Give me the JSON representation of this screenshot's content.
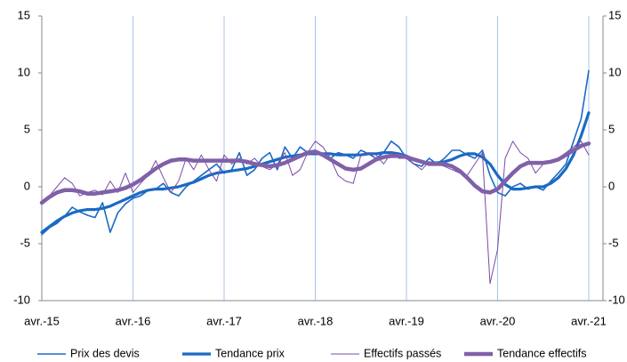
{
  "chart_data": {
    "type": "line",
    "categories": [
      "avr.-15",
      null,
      null,
      null,
      null,
      null,
      null,
      null,
      null,
      null,
      null,
      null,
      "avr.-16",
      null,
      null,
      null,
      null,
      null,
      null,
      null,
      null,
      null,
      null,
      null,
      "avr.-17",
      null,
      null,
      null,
      null,
      null,
      null,
      null,
      null,
      null,
      null,
      null,
      "avr.-18",
      null,
      null,
      null,
      null,
      null,
      null,
      null,
      null,
      null,
      null,
      null,
      "avr.-19",
      null,
      null,
      null,
      null,
      null,
      null,
      null,
      null,
      null,
      null,
      null,
      "avr.-20",
      null,
      null,
      null,
      null,
      null,
      null,
      null,
      null,
      null,
      null,
      null,
      "avr.-21"
    ],
    "ylim": [
      -10,
      15
    ],
    "yticks": [
      -10,
      -5,
      0,
      5,
      10,
      15
    ],
    "y2lim": [
      -10,
      15
    ],
    "y2ticks": [
      -10,
      -5,
      0,
      5,
      10,
      15
    ],
    "grid": "vertical",
    "series": [
      {
        "name": "Prix des devis",
        "color": "#1a6ac4",
        "line_width": 1.6,
        "values": [
          -4.2,
          -3.6,
          -3.2,
          -2.6,
          -1.8,
          -2.2,
          -2.5,
          -2.7,
          -1.4,
          -4.0,
          -2.3,
          -1.5,
          -1.0,
          -0.8,
          -0.3,
          -0.2,
          0.3,
          -0.5,
          -0.8,
          0.0,
          0.5,
          1.0,
          1.5,
          2.0,
          1.2,
          1.5,
          3.0,
          1.0,
          1.5,
          2.5,
          3.0,
          1.5,
          3.5,
          2.5,
          3.5,
          3.0,
          3.2,
          2.8,
          2.5,
          3.0,
          2.8,
          2.5,
          3.2,
          2.9,
          2.5,
          3.0,
          4.0,
          3.5,
          2.5,
          2.0,
          1.8,
          2.5,
          2.0,
          2.5,
          3.2,
          3.2,
          2.8,
          2.5,
          3.2,
          1.0,
          -0.5,
          -0.8,
          0.0,
          0.3,
          -0.2,
          0.0,
          -0.3,
          0.5,
          1.2,
          2.0,
          4.0,
          6.0,
          10.2
        ]
      },
      {
        "name": "Tendance prix",
        "color": "#1a6ac4",
        "line_width": 3.2,
        "values": [
          -4.0,
          -3.5,
          -3.0,
          -2.6,
          -2.3,
          -2.1,
          -2.0,
          -2.0,
          -1.9,
          -1.7,
          -1.4,
          -1.1,
          -0.8,
          -0.5,
          -0.3,
          -0.2,
          -0.2,
          -0.1,
          0.0,
          0.2,
          0.4,
          0.7,
          1.0,
          1.2,
          1.3,
          1.4,
          1.5,
          1.6,
          1.8,
          2.0,
          2.2,
          2.4,
          2.6,
          2.7,
          2.8,
          2.9,
          2.9,
          2.9,
          2.9,
          2.8,
          2.8,
          2.8,
          2.8,
          2.9,
          2.9,
          3.0,
          3.0,
          2.9,
          2.7,
          2.4,
          2.2,
          2.1,
          2.1,
          2.2,
          2.4,
          2.7,
          2.9,
          2.9,
          2.6,
          2.0,
          1.0,
          0.2,
          -0.2,
          -0.2,
          -0.1,
          0.0,
          0.0,
          0.3,
          0.8,
          1.6,
          2.8,
          4.5,
          6.5
        ]
      },
      {
        "name": "Effectifs passés",
        "color": "#7a4aa8",
        "line_width": 1,
        "values": [
          -1.5,
          -0.8,
          0.0,
          0.8,
          0.3,
          -0.8,
          -0.5,
          -0.3,
          -0.7,
          0.5,
          -0.5,
          1.2,
          -0.5,
          0.3,
          1.0,
          2.3,
          0.8,
          -0.5,
          0.5,
          2.5,
          1.5,
          2.8,
          1.5,
          0.5,
          2.8,
          2.0,
          2.5,
          2.0,
          2.5,
          1.8,
          1.5,
          2.0,
          3.0,
          1.0,
          1.5,
          3.0,
          4.0,
          3.5,
          2.5,
          1.0,
          0.5,
          0.3,
          2.8,
          3.0,
          2.8,
          2.0,
          3.0,
          2.5,
          2.5,
          2.0,
          1.5,
          2.2,
          2.0,
          1.8,
          1.5,
          1.2,
          1.0,
          2.0,
          3.0,
          -8.5,
          -5.5,
          2.5,
          4.0,
          3.0,
          2.5,
          1.2,
          2.0,
          2.2,
          2.5,
          3.0,
          3.5,
          4.0,
          2.8
        ]
      },
      {
        "name": "Tendance effectifs",
        "color": "#8060a8",
        "line_width": 4.5,
        "values": [
          -1.4,
          -0.9,
          -0.5,
          -0.3,
          -0.3,
          -0.4,
          -0.6,
          -0.6,
          -0.5,
          -0.4,
          -0.3,
          -0.1,
          0.2,
          0.6,
          1.1,
          1.6,
          2.0,
          2.3,
          2.4,
          2.4,
          2.3,
          2.3,
          2.3,
          2.3,
          2.3,
          2.3,
          2.3,
          2.2,
          2.0,
          1.9,
          1.8,
          1.9,
          2.1,
          2.4,
          2.7,
          3.0,
          3.1,
          2.8,
          2.4,
          2.0,
          1.6,
          1.5,
          1.6,
          2.0,
          2.4,
          2.6,
          2.7,
          2.7,
          2.6,
          2.4,
          2.2,
          2.0,
          2.0,
          2.0,
          1.8,
          1.4,
          0.8,
          0.1,
          -0.4,
          -0.5,
          -0.2,
          0.5,
          1.2,
          1.8,
          2.1,
          2.1,
          2.1,
          2.2,
          2.4,
          2.8,
          3.2,
          3.6,
          3.8
        ]
      }
    ]
  }
}
